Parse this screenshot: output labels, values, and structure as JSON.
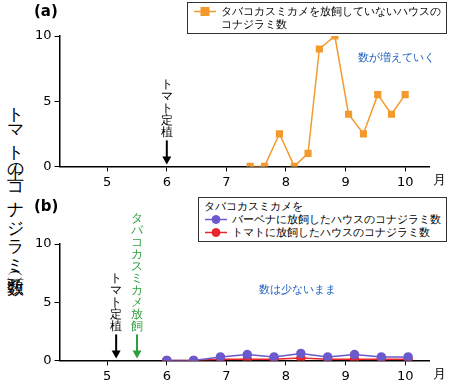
{
  "y_label": "トマト上のコナジラミ数（頭）",
  "chart_data": [
    {
      "type": "line",
      "panel": "(a)",
      "xlabel": "月",
      "x": [
        7.4,
        7.64,
        7.89,
        8.14,
        8.37,
        8.56,
        8.82,
        9.05,
        9.3,
        9.54,
        9.77,
        10
      ],
      "series": [
        {
          "name": "タバコカスミカメを放飼していないハウスのコナジラミ数",
          "color": "#f39a2e",
          "marker": "square",
          "line_style": "solid",
          "values": [
            0,
            0,
            2.5,
            0,
            1,
            9,
            10,
            4,
            2.5,
            5.5,
            4,
            5.5
          ]
        }
      ],
      "xlim": [
        4.2,
        10.4
      ],
      "xticks": [
        5,
        6,
        7,
        8,
        9,
        10
      ],
      "ylim": [
        0,
        10
      ],
      "yticks": [
        0,
        5,
        10
      ],
      "grid": false,
      "legend": "upper right",
      "annotations": [
        {
          "text": "トマト定植",
          "x": 6,
          "color": "#000000"
        },
        {
          "text": "数が増えていく",
          "x": 9.85,
          "y": 8.3,
          "color": "#1f5fbf"
        }
      ]
    },
    {
      "type": "line",
      "panel": "(b)",
      "xlabel": "月",
      "legend_title": "タバコカスミカメを",
      "x": [
        6,
        6.45,
        6.9,
        7.35,
        7.8,
        8.25,
        8.7,
        9.15,
        9.6,
        10.05
      ],
      "series": [
        {
          "name": "バーベナに放飼したハウスのコナジラミ数",
          "color": "#6a5acd",
          "marker": "circle",
          "line_style": "solid",
          "values": [
            0,
            0,
            0.3,
            0.5,
            0.3,
            0.6,
            0.3,
            0.5,
            0.3,
            0.3
          ]
        },
        {
          "name": "トマトに放飼したハウスのコナジラミ数",
          "color": "#e8262b",
          "marker": "circle",
          "line_style": "solid",
          "values": [
            0,
            0,
            0.1,
            0.1,
            0.1,
            0.2,
            0.1,
            0.1,
            0.1,
            0.1
          ]
        }
      ],
      "xlim": [
        4.2,
        10.4
      ],
      "xticks": [
        5,
        6,
        7,
        8,
        9,
        10
      ],
      "ylim": [
        0,
        10
      ],
      "yticks": [
        0,
        5,
        10
      ],
      "grid": false,
      "legend": "upper right",
      "annotations": [
        {
          "text": "トマト定植",
          "x": 5.15,
          "color": "#000000"
        },
        {
          "text": "タバコカスミカメ放飼",
          "x": 5.5,
          "color": "#2e9e3e"
        },
        {
          "text": "数は少ないまま",
          "x": 8.2,
          "y": 6,
          "color": "#1f5fbf"
        }
      ]
    }
  ]
}
